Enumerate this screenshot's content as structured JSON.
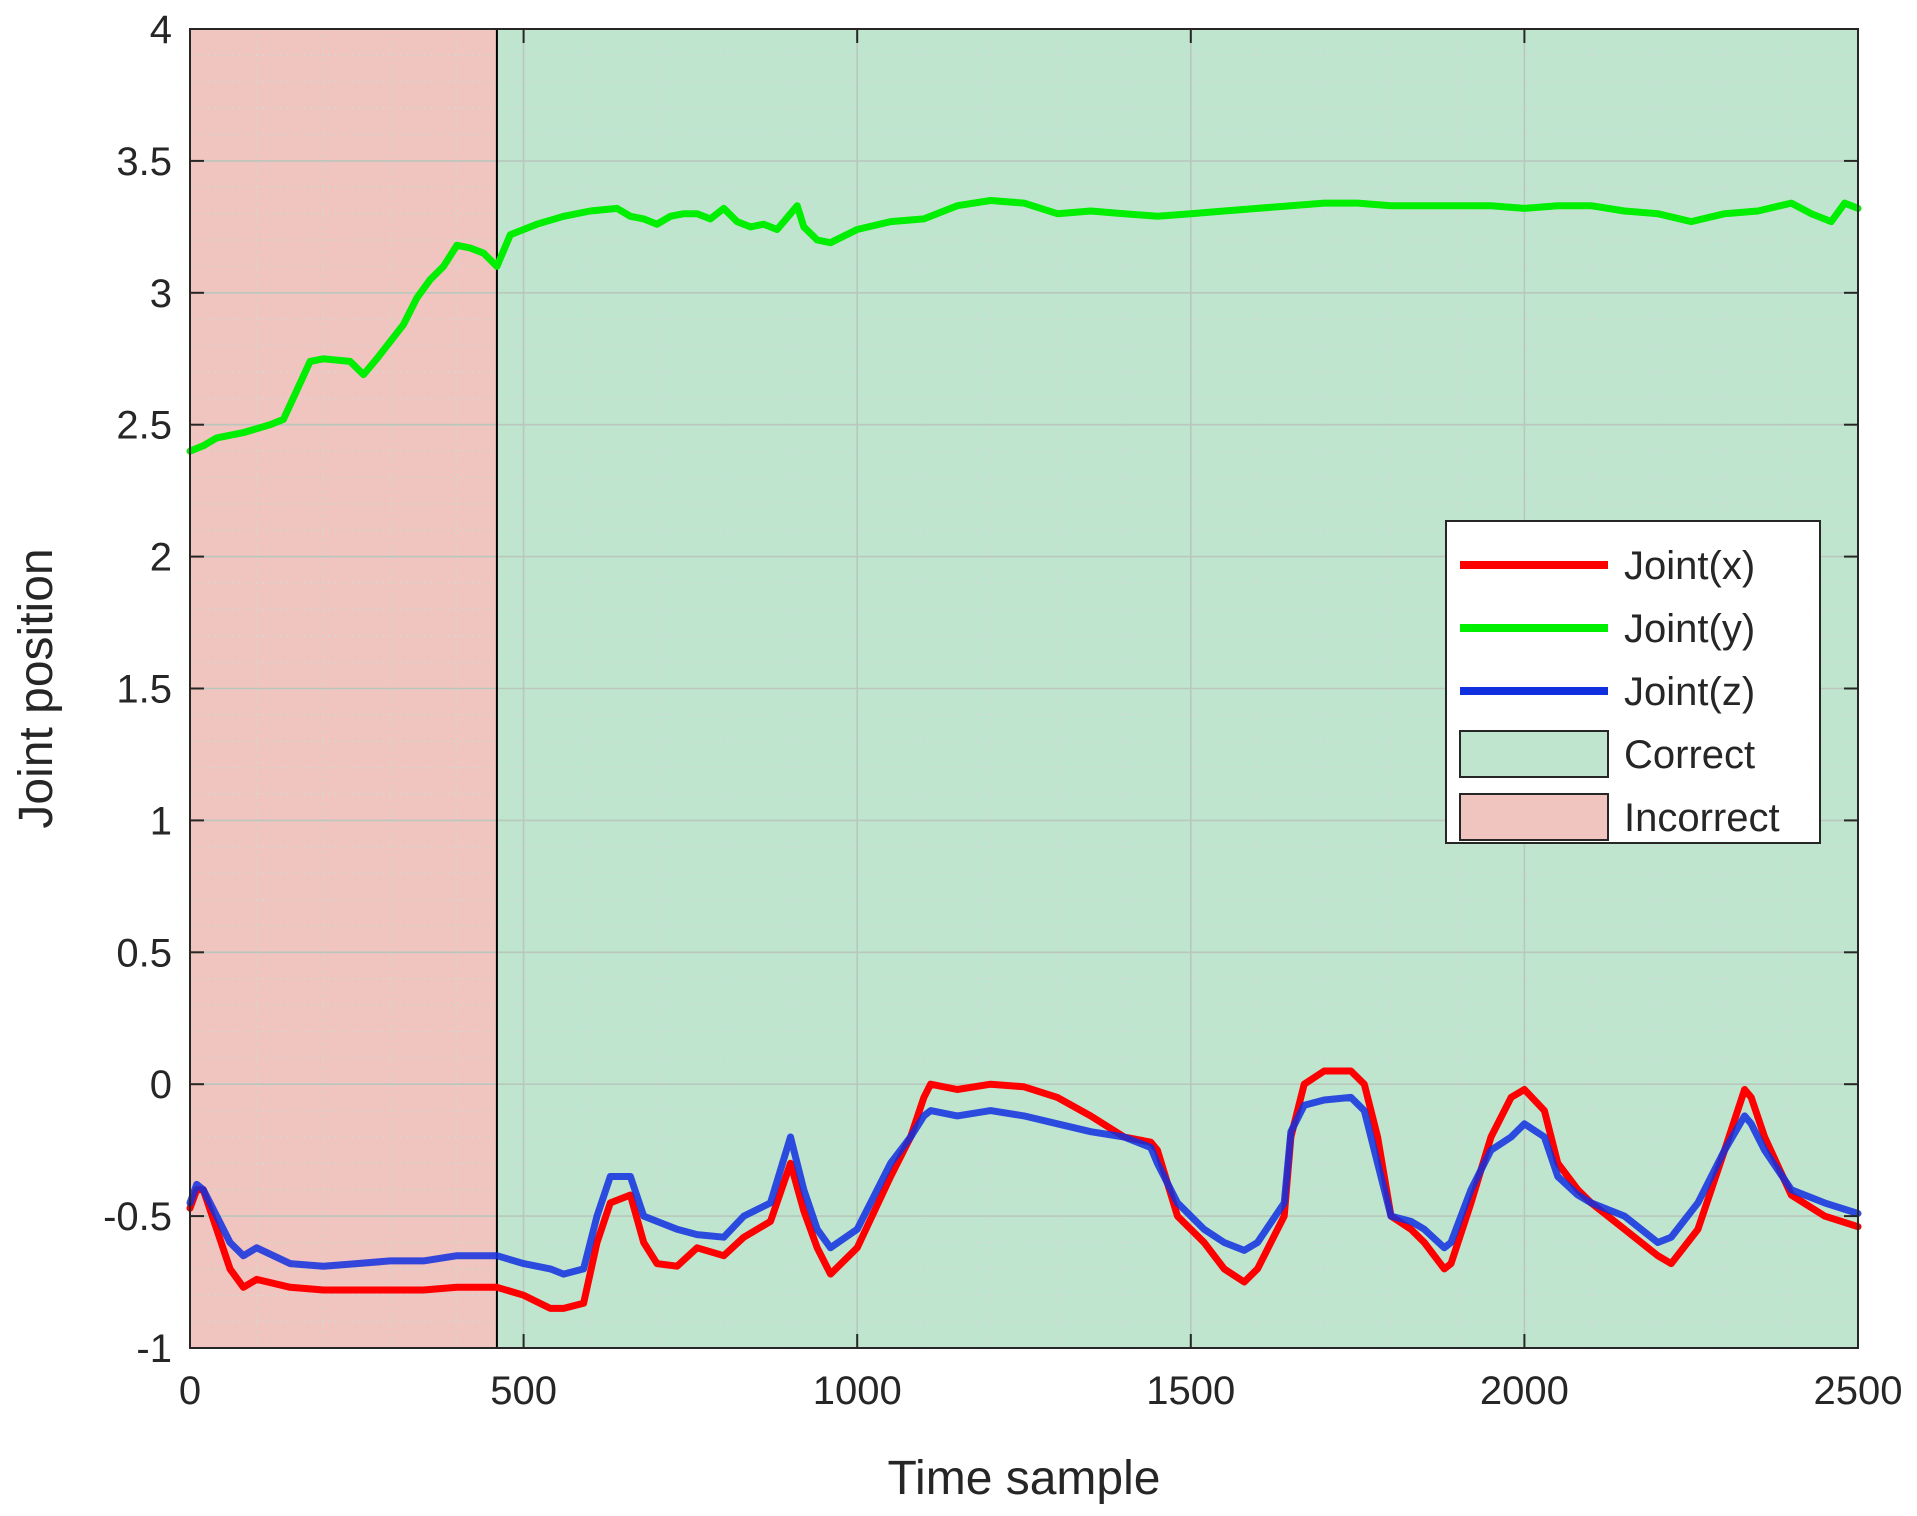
{
  "colors": {
    "background": "#ffffff",
    "axis": "#262626",
    "grid_major": "#b9c7bd",
    "grid_minor": "#cfd9d2",
    "incorrect_fill": "#f0c4bf",
    "correct_fill": "#c0e5cf",
    "divider": "#000000",
    "x_series": "#ff0000",
    "y_series": "#00ee00",
    "z_series": "#1030e0"
  },
  "chart_data": {
    "type": "line",
    "title": "",
    "xlabel": "Time sample",
    "ylabel": "Joint position",
    "xlim": [
      0,
      2500
    ],
    "ylim": [
      -1,
      4
    ],
    "xticks": [
      0,
      500,
      1000,
      1500,
      2000,
      2500
    ],
    "xtick_labels": [
      "0",
      "500",
      "1000",
      "1500",
      "2000",
      "2500"
    ],
    "yticks": [
      -1,
      -0.5,
      0,
      0.5,
      1,
      1.5,
      2,
      2.5,
      3,
      3.5,
      4
    ],
    "ytick_labels": [
      "-1",
      "-0.5",
      "0",
      "0.5",
      "1",
      "1.5",
      "2",
      "2.5",
      "3",
      "3.5",
      "4"
    ],
    "grid": true,
    "minor_grid": true,
    "legend_position": "right",
    "regions": [
      {
        "name": "Incorrect",
        "x_start": 0,
        "x_end": 460,
        "color": "#f0c4bf"
      },
      {
        "name": "Correct",
        "x_start": 460,
        "x_end": 2500,
        "color": "#c0e5cf"
      }
    ],
    "legend": [
      {
        "label": "Joint(x)",
        "kind": "line",
        "color": "#ff0000"
      },
      {
        "label": "Joint(y)",
        "kind": "line",
        "color": "#00ee00"
      },
      {
        "label": "Joint(z)",
        "kind": "line",
        "color": "#1030e0"
      },
      {
        "label": "Correct",
        "kind": "patch",
        "color": "#c0e5cf"
      },
      {
        "label": "Incorrect",
        "kind": "patch",
        "color": "#f0c4bf"
      }
    ],
    "series": [
      {
        "name": "Joint(x)",
        "color": "#ff0000",
        "x": [
          0,
          10,
          20,
          40,
          60,
          80,
          100,
          150,
          200,
          250,
          300,
          350,
          400,
          460,
          500,
          540,
          560,
          590,
          610,
          630,
          660,
          680,
          700,
          730,
          760,
          800,
          830,
          870,
          900,
          920,
          940,
          960,
          1000,
          1050,
          1080,
          1100,
          1110,
          1150,
          1200,
          1250,
          1300,
          1350,
          1400,
          1440,
          1450,
          1480,
          1520,
          1550,
          1580,
          1600,
          1640,
          1650,
          1670,
          1700,
          1740,
          1760,
          1780,
          1800,
          1830,
          1850,
          1880,
          1890,
          1920,
          1950,
          1980,
          2000,
          2030,
          2050,
          2080,
          2100,
          2150,
          2200,
          2220,
          2260,
          2300,
          2330,
          2340,
          2360,
          2400,
          2450,
          2500
        ],
        "y": [
          -0.47,
          -0.4,
          -0.4,
          -0.55,
          -0.7,
          -0.77,
          -0.74,
          -0.77,
          -0.78,
          -0.78,
          -0.78,
          -0.78,
          -0.77,
          -0.77,
          -0.8,
          -0.85,
          -0.85,
          -0.83,
          -0.6,
          -0.45,
          -0.42,
          -0.6,
          -0.68,
          -0.69,
          -0.62,
          -0.65,
          -0.58,
          -0.52,
          -0.3,
          -0.48,
          -0.62,
          -0.72,
          -0.62,
          -0.35,
          -0.2,
          -0.05,
          0.0,
          -0.02,
          0.0,
          -0.01,
          -0.05,
          -0.12,
          -0.2,
          -0.22,
          -0.25,
          -0.5,
          -0.6,
          -0.7,
          -0.75,
          -0.7,
          -0.5,
          -0.2,
          0.0,
          0.05,
          0.05,
          0.0,
          -0.2,
          -0.5,
          -0.55,
          -0.6,
          -0.7,
          -0.68,
          -0.45,
          -0.2,
          -0.05,
          -0.02,
          -0.1,
          -0.3,
          -0.4,
          -0.45,
          -0.55,
          -0.65,
          -0.68,
          -0.55,
          -0.25,
          -0.02,
          -0.05,
          -0.2,
          -0.42,
          -0.5,
          -0.54
        ]
      },
      {
        "name": "Joint(y)",
        "color": "#00ee00",
        "x": [
          0,
          20,
          40,
          80,
          120,
          140,
          160,
          180,
          200,
          240,
          260,
          280,
          320,
          340,
          360,
          380,
          400,
          420,
          440,
          460,
          480,
          520,
          560,
          600,
          640,
          660,
          680,
          700,
          720,
          740,
          760,
          780,
          800,
          820,
          840,
          860,
          880,
          890,
          900,
          910,
          920,
          940,
          960,
          1000,
          1050,
          1100,
          1150,
          1200,
          1250,
          1300,
          1350,
          1400,
          1450,
          1500,
          1550,
          1600,
          1650,
          1700,
          1750,
          1800,
          1850,
          1900,
          1950,
          2000,
          2050,
          2100,
          2150,
          2200,
          2250,
          2300,
          2350,
          2400,
          2430,
          2460,
          2480,
          2500
        ],
        "y": [
          2.4,
          2.42,
          2.45,
          2.47,
          2.5,
          2.52,
          2.63,
          2.74,
          2.75,
          2.74,
          2.69,
          2.75,
          2.88,
          2.98,
          3.05,
          3.1,
          3.18,
          3.17,
          3.15,
          3.1,
          3.22,
          3.26,
          3.29,
          3.31,
          3.32,
          3.29,
          3.28,
          3.26,
          3.29,
          3.3,
          3.3,
          3.28,
          3.32,
          3.27,
          3.25,
          3.26,
          3.24,
          3.27,
          3.3,
          3.33,
          3.25,
          3.2,
          3.19,
          3.24,
          3.27,
          3.28,
          3.33,
          3.35,
          3.34,
          3.3,
          3.31,
          3.3,
          3.29,
          3.3,
          3.31,
          3.32,
          3.33,
          3.34,
          3.34,
          3.33,
          3.33,
          3.33,
          3.33,
          3.32,
          3.33,
          3.33,
          3.31,
          3.3,
          3.27,
          3.3,
          3.31,
          3.34,
          3.3,
          3.27,
          3.34,
          3.32
        ]
      },
      {
        "name": "Joint(z)",
        "color": "#1030e0",
        "x": [
          0,
          10,
          20,
          40,
          60,
          80,
          100,
          150,
          200,
          250,
          300,
          350,
          400,
          460,
          500,
          540,
          560,
          590,
          610,
          630,
          660,
          680,
          700,
          730,
          760,
          800,
          830,
          870,
          900,
          920,
          940,
          960,
          1000,
          1050,
          1080,
          1100,
          1110,
          1150,
          1200,
          1250,
          1300,
          1350,
          1400,
          1440,
          1450,
          1480,
          1520,
          1550,
          1580,
          1600,
          1640,
          1650,
          1670,
          1700,
          1740,
          1760,
          1780,
          1800,
          1830,
          1850,
          1880,
          1890,
          1920,
          1950,
          1980,
          2000,
          2030,
          2050,
          2080,
          2100,
          2150,
          2200,
          2220,
          2260,
          2300,
          2330,
          2340,
          2360,
          2400,
          2450,
          2500
        ],
        "y": [
          -0.45,
          -0.38,
          -0.4,
          -0.5,
          -0.6,
          -0.65,
          -0.62,
          -0.68,
          -0.69,
          -0.68,
          -0.67,
          -0.67,
          -0.65,
          -0.65,
          -0.68,
          -0.7,
          -0.72,
          -0.7,
          -0.5,
          -0.35,
          -0.35,
          -0.5,
          -0.52,
          -0.55,
          -0.57,
          -0.58,
          -0.5,
          -0.45,
          -0.2,
          -0.4,
          -0.55,
          -0.62,
          -0.55,
          -0.3,
          -0.2,
          -0.12,
          -0.1,
          -0.12,
          -0.1,
          -0.12,
          -0.15,
          -0.18,
          -0.2,
          -0.24,
          -0.3,
          -0.45,
          -0.55,
          -0.6,
          -0.63,
          -0.6,
          -0.45,
          -0.18,
          -0.08,
          -0.06,
          -0.05,
          -0.1,
          -0.3,
          -0.5,
          -0.52,
          -0.55,
          -0.62,
          -0.6,
          -0.4,
          -0.25,
          -0.2,
          -0.15,
          -0.2,
          -0.35,
          -0.42,
          -0.45,
          -0.5,
          -0.6,
          -0.58,
          -0.45,
          -0.25,
          -0.12,
          -0.15,
          -0.25,
          -0.4,
          -0.45,
          -0.49
        ]
      }
    ]
  }
}
